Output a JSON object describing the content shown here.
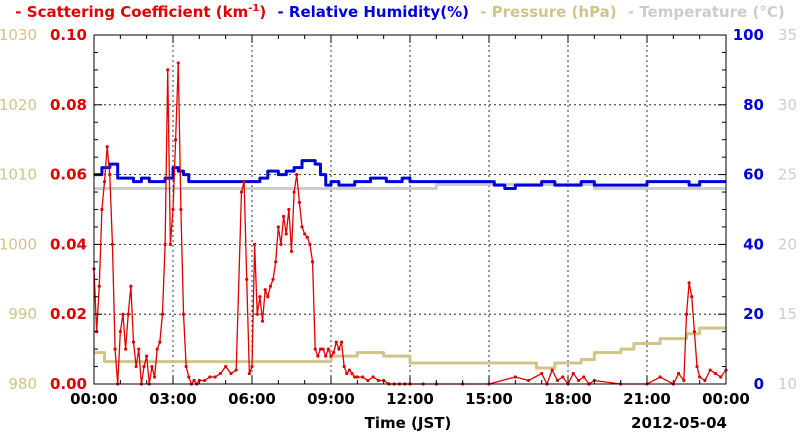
{
  "colors": {
    "scattering": "#e00000",
    "humidity": "#0000dd",
    "pressure": "#cfc48a",
    "temperature": "#cccccc",
    "axis": "#000000",
    "grid": "#000000"
  },
  "legend": {
    "scattering": {
      "dash": "-",
      "text": "Scattering Coefficient (km",
      "sup": "-1",
      "close": ")"
    },
    "humidity": {
      "dash": "-",
      "text": "Relative Humidity(%)"
    },
    "pressure": {
      "dash": "-",
      "text": "Pressure (hPa)"
    },
    "temperature": {
      "dash": "-",
      "text": "Temperature (°C)"
    }
  },
  "chart_data": {
    "type": "line",
    "xlabel": "Time (JST)",
    "date_label": "2012-05-04",
    "x_tick_labels": [
      "00:00",
      "03:00",
      "06:00",
      "09:00",
      "12:00",
      "15:00",
      "18:00",
      "21:00",
      "00:00"
    ],
    "xlim_hours": [
      0,
      24
    ],
    "grid": true,
    "axes": {
      "pressure": {
        "side": "left-outer",
        "ylim": [
          980,
          1030
        ],
        "ticks": [
          "980",
          "990",
          "1000",
          "1010",
          "1020",
          "1030"
        ]
      },
      "scattering": {
        "side": "left-inner",
        "ylim": [
          0,
          0.1
        ],
        "ticks": [
          "0.00",
          "0.02",
          "0.04",
          "0.06",
          "0.08",
          "0.10"
        ]
      },
      "humidity": {
        "side": "right-inner",
        "ylim": [
          0,
          100
        ],
        "ticks": [
          "0",
          "20",
          "40",
          "60",
          "80",
          "100"
        ]
      },
      "temperature": {
        "side": "right-outer",
        "ylim": [
          10,
          35
        ],
        "ticks": [
          "10",
          "15",
          "20",
          "25",
          "30",
          "35"
        ]
      }
    },
    "series": [
      {
        "name": "Scattering Coefficient",
        "axis": "scattering",
        "x": [
          0,
          0.1,
          0.2,
          0.3,
          0.4,
          0.5,
          0.6,
          0.7,
          0.8,
          0.9,
          1.0,
          1.1,
          1.2,
          1.3,
          1.4,
          1.5,
          1.6,
          1.7,
          1.8,
          1.9,
          2.0,
          2.1,
          2.2,
          2.3,
          2.4,
          2.5,
          2.6,
          2.7,
          2.8,
          2.9,
          3.0,
          3.1,
          3.2,
          3.3,
          3.4,
          3.5,
          3.6,
          3.7,
          3.8,
          3.9,
          4.0,
          4.2,
          4.4,
          4.6,
          4.8,
          5.0,
          5.2,
          5.4,
          5.6,
          5.7,
          5.8,
          5.9,
          6.0,
          6.1,
          6.2,
          6.3,
          6.4,
          6.5,
          6.6,
          6.7,
          6.8,
          6.9,
          7.0,
          7.1,
          7.2,
          7.3,
          7.4,
          7.5,
          7.6,
          7.7,
          7.8,
          7.9,
          8.0,
          8.1,
          8.2,
          8.3,
          8.4,
          8.5,
          8.6,
          8.7,
          8.8,
          8.9,
          9.0,
          9.1,
          9.2,
          9.3,
          9.4,
          9.5,
          9.6,
          9.7,
          9.8,
          9.9,
          10.0,
          10.2,
          10.4,
          10.6,
          10.8,
          11.0,
          11.2,
          11.4,
          11.6,
          11.8,
          12.0,
          12.5,
          13.0,
          14.0,
          15.0,
          16.0,
          16.5,
          17.0,
          17.2,
          17.4,
          17.6,
          17.8,
          18.0,
          18.2,
          18.4,
          18.6,
          18.8,
          19.0,
          20.0,
          21.0,
          21.5,
          22.0,
          22.2,
          22.4,
          22.5,
          22.6,
          22.7,
          22.8,
          22.9,
          23.0,
          23.2,
          23.4,
          23.6,
          23.8,
          24.0
        ],
        "values": [
          0.033,
          0.015,
          0.028,
          0.05,
          0.058,
          0.068,
          0.06,
          0.04,
          0.01,
          0.0,
          0.015,
          0.02,
          0.01,
          0.02,
          0.028,
          0.012,
          0.005,
          0.01,
          0.0,
          0.005,
          0.008,
          0.0,
          0.005,
          0.002,
          0.01,
          0.012,
          0.02,
          0.04,
          0.09,
          0.04,
          0.05,
          0.07,
          0.092,
          0.05,
          0.02,
          0.005,
          0.002,
          0.0,
          0.001,
          0.0,
          0.001,
          0.001,
          0.002,
          0.002,
          0.003,
          0.005,
          0.003,
          0.004,
          0.055,
          0.058,
          0.03,
          0.003,
          0.005,
          0.04,
          0.02,
          0.025,
          0.018,
          0.027,
          0.025,
          0.028,
          0.03,
          0.035,
          0.045,
          0.04,
          0.048,
          0.043,
          0.05,
          0.038,
          0.055,
          0.06,
          0.052,
          0.045,
          0.043,
          0.042,
          0.04,
          0.035,
          0.01,
          0.008,
          0.01,
          0.01,
          0.008,
          0.01,
          0.008,
          0.009,
          0.012,
          0.01,
          0.012,
          0.005,
          0.003,
          0.004,
          0.003,
          0.002,
          0.002,
          0.002,
          0.001,
          0.002,
          0.001,
          0.001,
          0.0,
          0.0,
          0.0,
          0.0,
          0.0,
          0.0,
          0.0,
          0.0,
          0.0,
          0.002,
          0.001,
          0.003,
          0.0,
          0.004,
          0.001,
          0.002,
          0.0,
          0.003,
          0.001,
          0.002,
          0.0,
          0.001,
          0.0,
          0.0,
          0.002,
          0.0,
          0.003,
          0.001,
          0.02,
          0.029,
          0.025,
          0.015,
          0.005,
          0.002,
          0.001,
          0.004,
          0.003,
          0.002,
          0.004
        ]
      },
      {
        "name": "Relative Humidity(%)",
        "axis": "humidity",
        "x": [
          0,
          0.3,
          0.6,
          0.9,
          1.2,
          1.5,
          1.8,
          2.1,
          2.4,
          2.7,
          3.0,
          3.2,
          3.4,
          3.6,
          4.0,
          5.0,
          5.5,
          6.0,
          6.3,
          6.6,
          7.0,
          7.3,
          7.6,
          7.9,
          8.2,
          8.4,
          8.6,
          8.8,
          9.0,
          9.3,
          9.6,
          9.9,
          10.2,
          10.5,
          10.8,
          11.1,
          11.4,
          11.7,
          12.0,
          12.5,
          13.0,
          14.0,
          15.0,
          15.2,
          15.6,
          16.0,
          16.5,
          17.0,
          17.5,
          18.0,
          18.5,
          19.0,
          19.5,
          20.0,
          20.5,
          21.0,
          22.0,
          22.6,
          23.0,
          23.4,
          23.8,
          24.0
        ],
        "values": [
          60,
          62,
          63,
          59,
          59,
          58,
          59,
          58,
          58,
          59,
          62,
          61,
          60,
          58,
          58,
          58,
          58,
          58,
          59,
          61,
          60,
          61,
          62,
          64,
          64,
          63,
          60,
          57,
          58,
          57,
          57,
          58,
          58,
          59,
          59,
          58,
          58,
          59,
          58,
          58,
          58,
          58,
          58,
          57,
          56,
          57,
          57,
          58,
          57,
          57,
          58,
          57,
          57,
          57,
          57,
          58,
          58,
          57,
          58,
          58,
          58,
          58
        ]
      },
      {
        "name": "Pressure (hPa)",
        "axis": "pressure",
        "x": [
          0,
          0.2,
          0.4,
          1.0,
          3.0,
          5.0,
          6.0,
          8.0,
          9.0,
          10.0,
          10.5,
          11.0,
          12.0,
          14.0,
          16.0,
          16.5,
          16.8,
          17.0,
          17.5,
          18.0,
          18.5,
          19.0,
          20.0,
          20.5,
          21.0,
          21.5,
          22.0,
          22.5,
          23.0,
          24.0
        ],
        "values": [
          984.5,
          984.5,
          983.2,
          983.2,
          983.2,
          983.2,
          983.2,
          983.2,
          984.0,
          984.5,
          984.5,
          984.0,
          983.0,
          983.0,
          983.0,
          983.0,
          982.3,
          982.3,
          983.0,
          983.0,
          983.5,
          984.5,
          985.0,
          985.8,
          985.8,
          986.5,
          986.5,
          987.2,
          988.0,
          988.0
        ]
      },
      {
        "name": "Temperature (°C)",
        "axis": "temperature",
        "x": [
          0,
          1,
          2,
          3,
          4,
          5,
          6,
          7,
          8,
          9,
          10,
          11,
          12,
          12.8,
          13,
          14,
          15,
          16,
          17,
          18,
          18.8,
          19,
          20,
          21,
          22,
          23,
          24
        ],
        "values": [
          24,
          24,
          24,
          24,
          24,
          24,
          24,
          24,
          24,
          24,
          24,
          24,
          24,
          24,
          24.3,
          24.3,
          24.3,
          24.3,
          24.3,
          24.3,
          24.3,
          24,
          24,
          24,
          24,
          24,
          24
        ]
      }
    ]
  }
}
